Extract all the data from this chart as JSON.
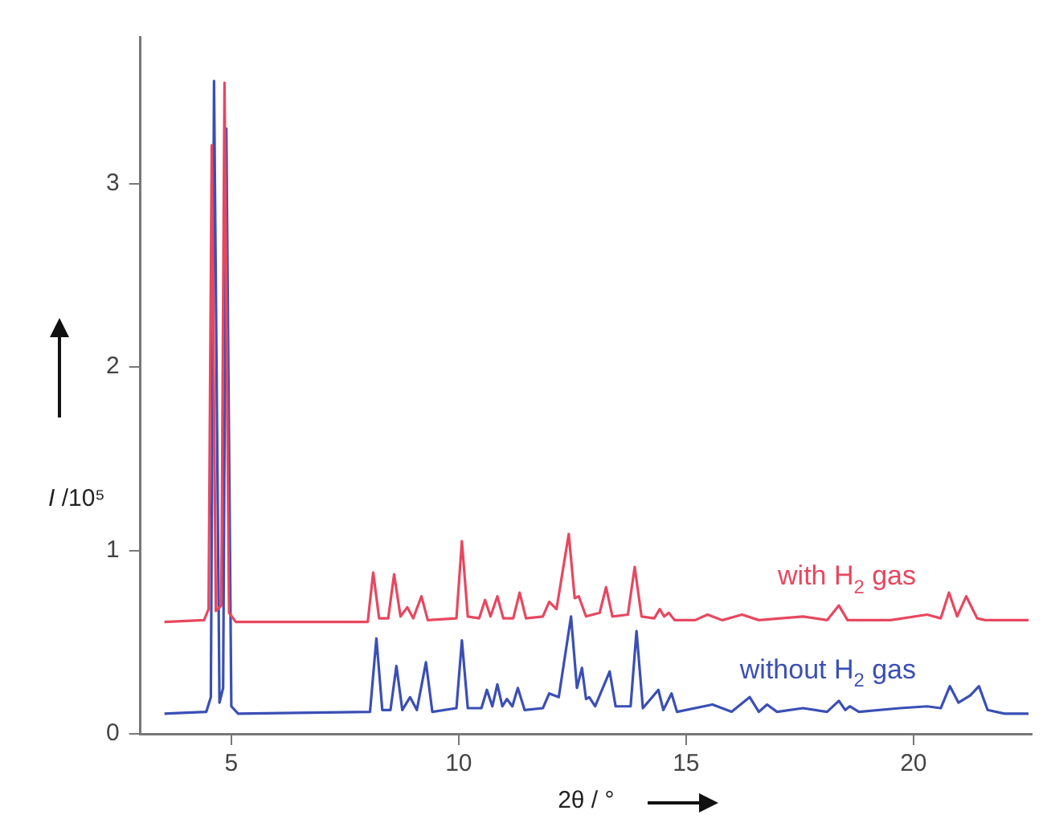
{
  "chart_data": {
    "type": "line",
    "xlabel": "2θ / °",
    "ylabel": "I /10⁵",
    "xlim": [
      3,
      22.6
    ],
    "ylim": [
      0,
      3.8
    ],
    "xticks": [
      5,
      10,
      15,
      20
    ],
    "yticks": [
      0,
      1,
      2,
      3
    ],
    "grid": false,
    "legend": false,
    "marker": "none",
    "line_style": "solid",
    "series": [
      {
        "name": "with H$_{2}$ gas",
        "color": "#e8475f",
        "x": [
          3.53,
          4.4,
          4.5,
          4.57,
          4.66,
          4.78,
          4.85,
          4.95,
          5.1,
          8.0,
          8.12,
          8.25,
          8.45,
          8.58,
          8.72,
          8.87,
          9.0,
          9.18,
          9.32,
          9.95,
          10.07,
          10.2,
          10.45,
          10.58,
          10.7,
          10.85,
          10.98,
          11.2,
          11.34,
          11.48,
          11.85,
          11.99,
          12.15,
          12.42,
          12.55,
          12.64,
          12.8,
          13.1,
          13.24,
          13.38,
          13.72,
          13.87,
          14.02,
          14.3,
          14.42,
          14.52,
          14.62,
          14.75,
          15.2,
          15.47,
          15.8,
          16.23,
          16.6,
          17.57,
          18.1,
          18.36,
          18.55,
          19.5,
          20.3,
          20.6,
          20.78,
          20.96,
          21.16,
          21.4,
          21.58,
          22.53
        ],
        "values": [
          0.61,
          0.62,
          0.68,
          3.21,
          0.67,
          0.7,
          3.55,
          0.66,
          0.61,
          0.61,
          0.88,
          0.63,
          0.63,
          0.87,
          0.64,
          0.69,
          0.63,
          0.75,
          0.62,
          0.63,
          1.05,
          0.64,
          0.63,
          0.73,
          0.64,
          0.75,
          0.63,
          0.63,
          0.77,
          0.63,
          0.64,
          0.72,
          0.68,
          1.09,
          0.74,
          0.75,
          0.64,
          0.66,
          0.8,
          0.64,
          0.65,
          0.91,
          0.64,
          0.63,
          0.68,
          0.64,
          0.66,
          0.62,
          0.62,
          0.65,
          0.62,
          0.65,
          0.62,
          0.64,
          0.62,
          0.7,
          0.62,
          0.62,
          0.65,
          0.63,
          0.77,
          0.64,
          0.75,
          0.63,
          0.62,
          0.62
        ]
      },
      {
        "name": "without H$_{2}$ gas",
        "color": "#3a4fb5",
        "x": [
          3.53,
          4.45,
          4.55,
          4.62,
          4.74,
          4.82,
          4.89,
          5.0,
          5.15,
          8.05,
          8.19,
          8.32,
          8.5,
          8.63,
          8.76,
          8.93,
          9.08,
          9.28,
          9.42,
          9.95,
          10.07,
          10.2,
          10.5,
          10.62,
          10.74,
          10.85,
          10.96,
          11.06,
          11.18,
          11.3,
          11.45,
          11.85,
          11.99,
          12.2,
          12.47,
          12.6,
          12.71,
          12.8,
          12.87,
          13.0,
          13.32,
          13.45,
          13.78,
          13.91,
          14.05,
          14.39,
          14.5,
          14.68,
          14.8,
          15.58,
          16.0,
          16.4,
          16.6,
          16.78,
          17.0,
          17.57,
          18.1,
          18.36,
          18.5,
          18.6,
          18.8,
          19.7,
          20.3,
          20.6,
          20.8,
          20.99,
          21.25,
          21.44,
          21.63,
          22.0,
          22.53
        ],
        "values": [
          0.11,
          0.12,
          0.2,
          3.56,
          0.17,
          0.25,
          3.3,
          0.15,
          0.11,
          0.12,
          0.52,
          0.13,
          0.13,
          0.37,
          0.13,
          0.2,
          0.13,
          0.39,
          0.12,
          0.14,
          0.51,
          0.14,
          0.14,
          0.24,
          0.15,
          0.27,
          0.15,
          0.19,
          0.15,
          0.25,
          0.13,
          0.14,
          0.22,
          0.2,
          0.64,
          0.25,
          0.36,
          0.19,
          0.2,
          0.15,
          0.34,
          0.15,
          0.15,
          0.56,
          0.14,
          0.24,
          0.13,
          0.22,
          0.12,
          0.16,
          0.12,
          0.2,
          0.12,
          0.16,
          0.12,
          0.14,
          0.12,
          0.18,
          0.13,
          0.15,
          0.12,
          0.14,
          0.15,
          0.14,
          0.26,
          0.17,
          0.21,
          0.26,
          0.13,
          0.11,
          0.11
        ]
      }
    ]
  }
}
